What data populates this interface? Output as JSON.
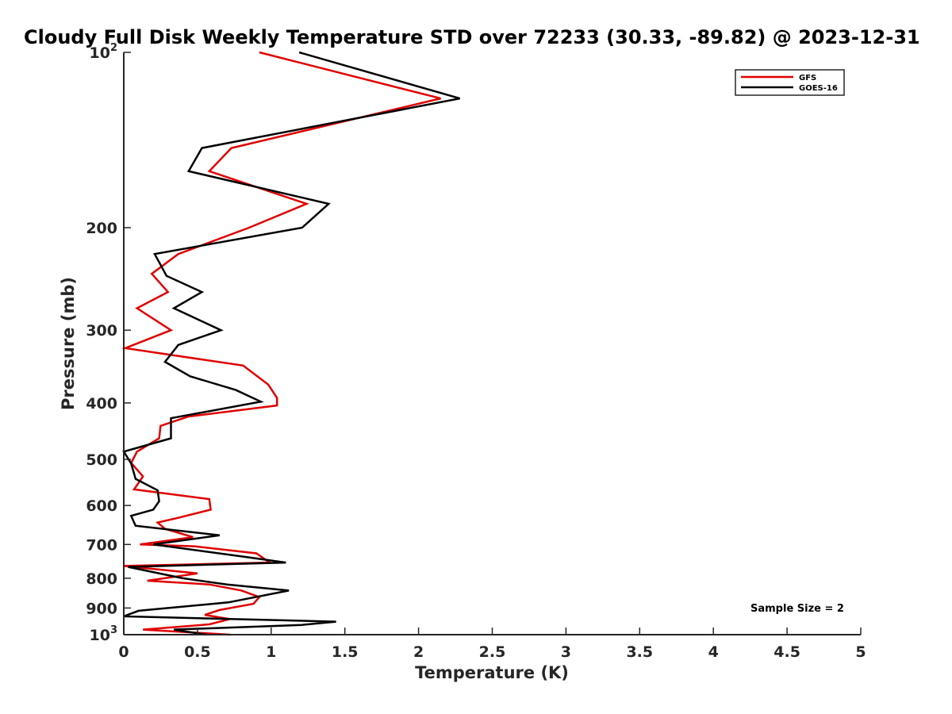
{
  "chart_data": {
    "type": "line",
    "title": "Cloudy Full Disk Weekly Temperature STD over 72233 (30.33, -89.82) @ 2023-12-31",
    "xlabel": "Temperature (K)",
    "ylabel": "Pressure (mb)",
    "xlim": [
      0,
      5
    ],
    "ylim": [
      100,
      1000
    ],
    "yscale": "log",
    "y_reversed": true,
    "x_ticks": [
      0,
      0.5,
      1,
      1.5,
      2,
      2.5,
      3,
      3.5,
      4,
      4.5,
      5
    ],
    "x_tick_labels": [
      "0",
      "0.5",
      "1",
      "1.5",
      "2",
      "2.5",
      "3",
      "3.5",
      "4",
      "4.5",
      "5"
    ],
    "y_ticks": [
      100,
      200,
      300,
      400,
      500,
      600,
      700,
      800,
      900,
      1000
    ],
    "y_tick_labels": [
      {
        "base": "10",
        "exp": "2"
      },
      {
        "base": "200"
      },
      {
        "base": "300"
      },
      {
        "base": "400"
      },
      {
        "base": "500"
      },
      {
        "base": "600"
      },
      {
        "base": "700"
      },
      {
        "base": "800"
      },
      {
        "base": "900"
      },
      {
        "base": "10",
        "exp": "3"
      }
    ],
    "legend": {
      "position": "top-right"
    },
    "annotation": "Sample Size = 2",
    "grid": false,
    "series": [
      {
        "name": "GFS",
        "color": "#e00000",
        "points": [
          [
            0.92,
            100
          ],
          [
            2.15,
            120
          ],
          [
            0.73,
            146
          ],
          [
            0.58,
            160
          ],
          [
            1.24,
            182
          ],
          [
            0.85,
            200
          ],
          [
            0.37,
            222
          ],
          [
            0.19,
            240
          ],
          [
            0.3,
            258
          ],
          [
            0.09,
            275
          ],
          [
            0.32,
            300
          ],
          [
            0.01,
            322
          ],
          [
            0.81,
            345
          ],
          [
            0.98,
            372
          ],
          [
            1.04,
            392
          ],
          [
            1.04,
            404
          ],
          [
            0.44,
            422
          ],
          [
            0.25,
            438
          ],
          [
            0.24,
            460
          ],
          [
            0.09,
            485
          ],
          [
            0.05,
            507
          ],
          [
            0.13,
            535
          ],
          [
            0.07,
            563
          ],
          [
            0.58,
            585
          ],
          [
            0.59,
            610
          ],
          [
            0.37,
            630
          ],
          [
            0.23,
            642
          ],
          [
            0.28,
            658
          ],
          [
            0.47,
            680
          ],
          [
            0.11,
            700
          ],
          [
            0.48,
            705
          ],
          [
            0.9,
            725
          ],
          [
            0.99,
            752
          ],
          [
            0.0,
            762
          ],
          [
            0.5,
            785
          ],
          [
            0.16,
            808
          ],
          [
            0.58,
            820
          ],
          [
            0.8,
            840
          ],
          [
            0.92,
            862
          ],
          [
            0.88,
            885
          ],
          [
            0.65,
            907
          ],
          [
            0.55,
            925
          ],
          [
            0.72,
            940
          ],
          [
            0.58,
            960
          ],
          [
            0.13,
            980
          ],
          [
            0.72,
            1000
          ]
        ]
      },
      {
        "name": "GOES-16",
        "color": "#000000",
        "points": [
          [
            1.19,
            100
          ],
          [
            2.28,
            120
          ],
          [
            0.53,
            146
          ],
          [
            0.44,
            160
          ],
          [
            1.39,
            182
          ],
          [
            1.21,
            200
          ],
          [
            0.21,
            222
          ],
          [
            0.29,
            242
          ],
          [
            0.53,
            258
          ],
          [
            0.34,
            275
          ],
          [
            0.66,
            300
          ],
          [
            0.37,
            318
          ],
          [
            0.28,
            340
          ],
          [
            0.45,
            360
          ],
          [
            0.76,
            380
          ],
          [
            0.93,
            398
          ],
          [
            0.32,
            425
          ],
          [
            0.32,
            460
          ],
          [
            0.0,
            485
          ],
          [
            0.05,
            508
          ],
          [
            0.08,
            540
          ],
          [
            0.23,
            565
          ],
          [
            0.24,
            590
          ],
          [
            0.2,
            610
          ],
          [
            0.05,
            625
          ],
          [
            0.08,
            650
          ],
          [
            0.65,
            675
          ],
          [
            0.2,
            700
          ],
          [
            0.82,
            735
          ],
          [
            1.1,
            752
          ],
          [
            0.03,
            765
          ],
          [
            0.4,
            800
          ],
          [
            0.7,
            820
          ],
          [
            1.12,
            840
          ],
          [
            0.71,
            880
          ],
          [
            0.1,
            910
          ],
          [
            0.0,
            930
          ],
          [
            1.44,
            950
          ],
          [
            1.21,
            962
          ],
          [
            0.34,
            980
          ],
          [
            0.56,
            1000
          ]
        ]
      }
    ]
  }
}
